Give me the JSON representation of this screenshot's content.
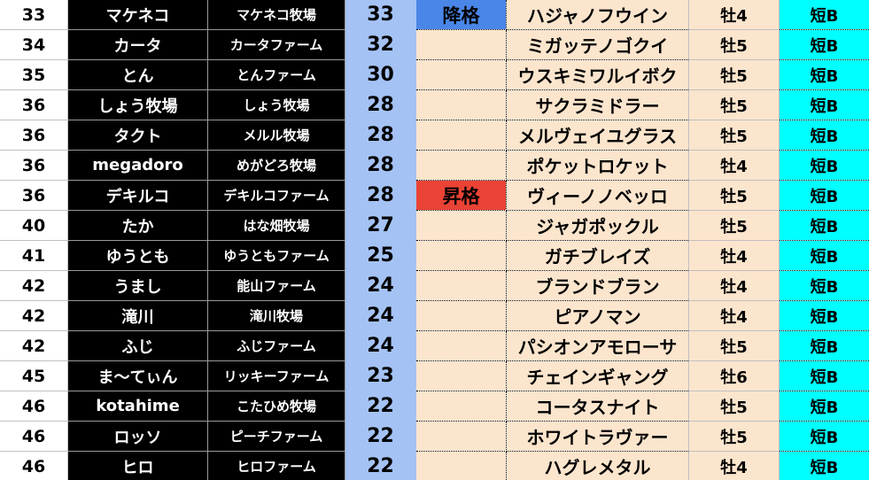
{
  "colors": {
    "points_bg": "#a4c2f4",
    "demotion_badge": "#4a86e8",
    "promotion_badge": "#ea4335",
    "horse_bg": "#fce5cd",
    "class_bg": "#00ffff",
    "owner_bg": "#000000"
  },
  "rows": [
    {
      "rank": "33",
      "name": "マケネコ",
      "farm": "マケネコ牧場",
      "points": "33",
      "badge": "降格",
      "badge_type": "down",
      "horse": "ハジャノフウイン",
      "sex_age": "牡4",
      "class": "短B"
    },
    {
      "rank": "34",
      "name": "カータ",
      "farm": "カータファーム",
      "points": "32",
      "badge": "",
      "badge_type": "",
      "horse": "ミガッテノゴクイ",
      "sex_age": "牡5",
      "class": "短B"
    },
    {
      "rank": "35",
      "name": "とん",
      "farm": "とんファーム",
      "points": "30",
      "badge": "",
      "badge_type": "",
      "horse": "ウスキミワルイボク",
      "sex_age": "牡5",
      "class": "短B"
    },
    {
      "rank": "36",
      "name": "しょう牧場",
      "farm": "しょう牧場",
      "points": "28",
      "badge": "",
      "badge_type": "",
      "horse": "サクラミドラー",
      "sex_age": "牡5",
      "class": "短B"
    },
    {
      "rank": "36",
      "name": "タクト",
      "farm": "メルル牧場",
      "points": "28",
      "badge": "",
      "badge_type": "",
      "horse": "メルヴェイユグラス",
      "sex_age": "牡5",
      "class": "短B"
    },
    {
      "rank": "36",
      "name": "megadoro",
      "farm": "めがどろ牧場",
      "points": "28",
      "badge": "",
      "badge_type": "",
      "horse": "ポケットロケット",
      "sex_age": "牡4",
      "class": "短B"
    },
    {
      "rank": "36",
      "name": "デキルコ",
      "farm": "デキルコファーム",
      "points": "28",
      "badge": "昇格",
      "badge_type": "up",
      "horse": "ヴィーノノベッロ",
      "sex_age": "牡5",
      "class": "短B"
    },
    {
      "rank": "40",
      "name": "たか",
      "farm": "はな畑牧場",
      "points": "27",
      "badge": "",
      "badge_type": "",
      "horse": "ジャガポックル",
      "sex_age": "牡5",
      "class": "短B"
    },
    {
      "rank": "41",
      "name": "ゆうとも",
      "farm": "ゆうともファーム",
      "points": "25",
      "badge": "",
      "badge_type": "",
      "horse": "ガチブレイズ",
      "sex_age": "牡4",
      "class": "短B"
    },
    {
      "rank": "42",
      "name": "うまし",
      "farm": "能山ファーム",
      "points": "24",
      "badge": "",
      "badge_type": "",
      "horse": "ブランドブラン",
      "sex_age": "牡4",
      "class": "短B"
    },
    {
      "rank": "42",
      "name": "滝川",
      "farm": "滝川牧場",
      "points": "24",
      "badge": "",
      "badge_type": "",
      "horse": "ピアノマン",
      "sex_age": "牡4",
      "class": "短B"
    },
    {
      "rank": "42",
      "name": "ふじ",
      "farm": "ふじファーム",
      "points": "24",
      "badge": "",
      "badge_type": "",
      "horse": "パシオンアモローサ",
      "sex_age": "牡5",
      "class": "短B"
    },
    {
      "rank": "45",
      "name": "ま〜てぃん",
      "farm": "リッキーファーム",
      "points": "23",
      "badge": "",
      "badge_type": "",
      "horse": "チェインギャング",
      "sex_age": "牡6",
      "class": "短B"
    },
    {
      "rank": "46",
      "name": "kotahime",
      "farm": "こたひめ牧場",
      "points": "22",
      "badge": "",
      "badge_type": "",
      "horse": "コータスナイト",
      "sex_age": "牡5",
      "class": "短B"
    },
    {
      "rank": "46",
      "name": "ロッソ",
      "farm": "ピーチファーム",
      "points": "22",
      "badge": "",
      "badge_type": "",
      "horse": "ホワイトラヴァー",
      "sex_age": "牡5",
      "class": "短B"
    },
    {
      "rank": "46",
      "name": "ヒロ",
      "farm": "ヒロファーム",
      "points": "22",
      "badge": "",
      "badge_type": "",
      "horse": "ハグレメタル",
      "sex_age": "牡4",
      "class": "短B"
    }
  ]
}
